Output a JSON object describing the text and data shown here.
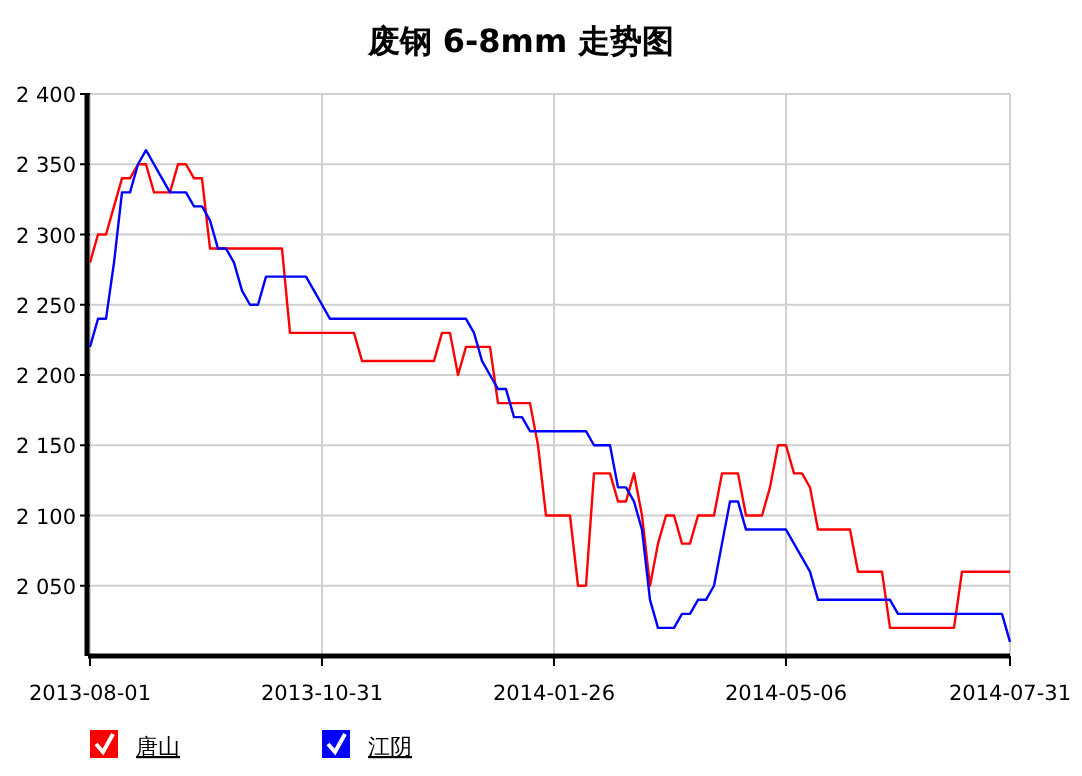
{
  "chart_data": {
    "type": "line",
    "title": "废钢 6-8mm 走势图",
    "categories": [
      "2013-08-01",
      null,
      null,
      null,
      null,
      null,
      null,
      null,
      null,
      null,
      null,
      null,
      null,
      null,
      null,
      null,
      null,
      null,
      null,
      null,
      null,
      null,
      null,
      null,
      null,
      null,
      null,
      null,
      null,
      "2013-10-31",
      null,
      null,
      null,
      null,
      null,
      null,
      null,
      null,
      null,
      null,
      null,
      null,
      null,
      null,
      null,
      null,
      null,
      null,
      null,
      null,
      null,
      null,
      null,
      null,
      null,
      null,
      null,
      null,
      "2014-01-26",
      null,
      null,
      null,
      null,
      null,
      null,
      null,
      null,
      null,
      null,
      null,
      null,
      null,
      null,
      null,
      null,
      null,
      null,
      null,
      null,
      null,
      null,
      null,
      null,
      null,
      null,
      null,
      null,
      "2014-05-06",
      null,
      null,
      null,
      null,
      null,
      null,
      null,
      null,
      null,
      null,
      null,
      null,
      null,
      null,
      null,
      null,
      null,
      null,
      null,
      null,
      null,
      null,
      null,
      null,
      null,
      null,
      null,
      "2014-07-31"
    ],
    "ylim": [
      2000,
      2400
    ],
    "yticks": [
      {
        "value": 2050,
        "label": "2 050"
      },
      {
        "value": 2100,
        "label": "2 100"
      },
      {
        "value": 2150,
        "label": "2 150"
      },
      {
        "value": 2200,
        "label": "2 200"
      },
      {
        "value": 2250,
        "label": "2 250"
      },
      {
        "value": 2300,
        "label": "2 300"
      },
      {
        "value": 2350,
        "label": "2 350"
      },
      {
        "value": 2400,
        "label": "2 400"
      }
    ],
    "grid": true,
    "legend": "bottom left",
    "marker": "none",
    "line_style": "solid",
    "series": [
      {
        "name": "唐山",
        "color": "#ff0000",
        "values": [
          2280,
          2300,
          2300,
          2320,
          2340,
          2340,
          2350,
          2350,
          2330,
          2330,
          2330,
          2350,
          2350,
          2340,
          2340,
          2290,
          2290,
          2290,
          2290,
          2290,
          2290,
          2290,
          2290,
          2290,
          2290,
          2230,
          2230,
          2230,
          2230,
          2230,
          2230,
          2230,
          2230,
          2230,
          2210,
          2210,
          2210,
          2210,
          2210,
          2210,
          2210,
          2210,
          2210,
          2210,
          2230,
          2230,
          2200,
          2220,
          2220,
          2220,
          2220,
          2180,
          2180,
          2180,
          2180,
          2180,
          2150,
          2100,
          2100,
          2100,
          2100,
          2050,
          2050,
          2130,
          2130,
          2130,
          2110,
          2110,
          2130,
          2100,
          2050,
          2080,
          2100,
          2100,
          2080,
          2080,
          2100,
          2100,
          2100,
          2130,
          2130,
          2130,
          2100,
          2100,
          2100,
          2120,
          2150,
          2150,
          2130,
          2130,
          2120,
          2090,
          2090,
          2090,
          2090,
          2090,
          2060,
          2060,
          2060,
          2060,
          2020,
          2020,
          2020,
          2020,
          2020,
          2020,
          2020,
          2020,
          2020,
          2060,
          2060,
          2060,
          2060,
          2060,
          2060,
          2060
        ]
      },
      {
        "name": "江阴",
        "color": "#0000ff",
        "values": [
          2220,
          2240,
          2240,
          2280,
          2330,
          2330,
          2350,
          2360,
          2350,
          2340,
          2330,
          2330,
          2330,
          2320,
          2320,
          2310,
          2290,
          2290,
          2280,
          2260,
          2250,
          2250,
          2270,
          2270,
          2270,
          2270,
          2270,
          2270,
          2260,
          2250,
          2240,
          2240,
          2240,
          2240,
          2240,
          2240,
          2240,
          2240,
          2240,
          2240,
          2240,
          2240,
          2240,
          2240,
          2240,
          2240,
          2240,
          2240,
          2230,
          2210,
          2200,
          2190,
          2190,
          2170,
          2170,
          2160,
          2160,
          2160,
          2160,
          2160,
          2160,
          2160,
          2160,
          2150,
          2150,
          2150,
          2120,
          2120,
          2110,
          2090,
          2040,
          2020,
          2020,
          2020,
          2030,
          2030,
          2040,
          2040,
          2050,
          2080,
          2110,
          2110,
          2090,
          2090,
          2090,
          2090,
          2090,
          2090,
          2080,
          2070,
          2060,
          2040,
          2040,
          2040,
          2040,
          2040,
          2040,
          2040,
          2040,
          2040,
          2040,
          2030,
          2030,
          2030,
          2030,
          2030,
          2030,
          2030,
          2030,
          2030,
          2030,
          2030,
          2030,
          2030,
          2030,
          2010
        ]
      }
    ]
  }
}
